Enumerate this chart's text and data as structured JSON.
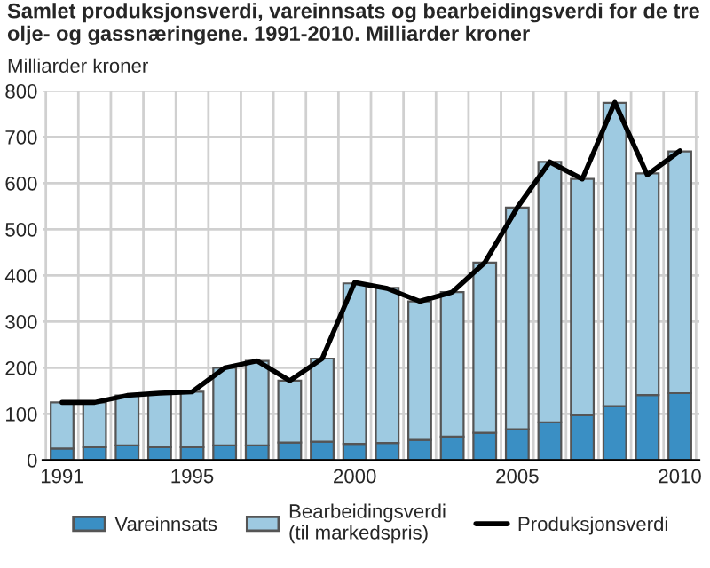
{
  "chart_data": {
    "type": "bar",
    "title": "Samlet produksjonsverdi, vareinnsats og bearbeidingsverdi for de tre olje- og gassnæringene. 1991-2010. Milliarder kroner",
    "ylabel": "Milliarder kroner",
    "categories": [
      "1991",
      null,
      null,
      null,
      "1995",
      null,
      null,
      null,
      null,
      "2000",
      null,
      null,
      null,
      null,
      "2005",
      null,
      null,
      null,
      null,
      "2010"
    ],
    "stacked": true,
    "series": [
      {
        "name": "Vareinnsats",
        "color": "#3a8fc4",
        "values": [
          25,
          28,
          32,
          28,
          28,
          32,
          32,
          38,
          40,
          35,
          37,
          44,
          51,
          59,
          67,
          82,
          97,
          117,
          141,
          145
        ]
      },
      {
        "name": "Bearbeidingsverdi\n(til markedspris)",
        "color": "#9ecae1",
        "values": [
          100,
          97,
          108,
          117,
          120,
          168,
          183,
          134,
          180,
          348,
          336,
          300,
          313,
          369,
          480,
          564,
          512,
          657,
          480,
          524
        ]
      },
      {
        "name": "Produksjonsverdi",
        "type": "line",
        "color": "#000000",
        "values": [
          125,
          125,
          140,
          145,
          148,
          200,
          215,
          172,
          220,
          385,
          372,
          344,
          364,
          428,
          547,
          646,
          609,
          775,
          618,
          670
        ]
      }
    ],
    "ylim": [
      0,
      800
    ],
    "yticks": [
      0,
      100,
      200,
      300,
      400,
      500,
      600,
      700,
      800
    ],
    "grid": true,
    "legend": "bottom"
  }
}
